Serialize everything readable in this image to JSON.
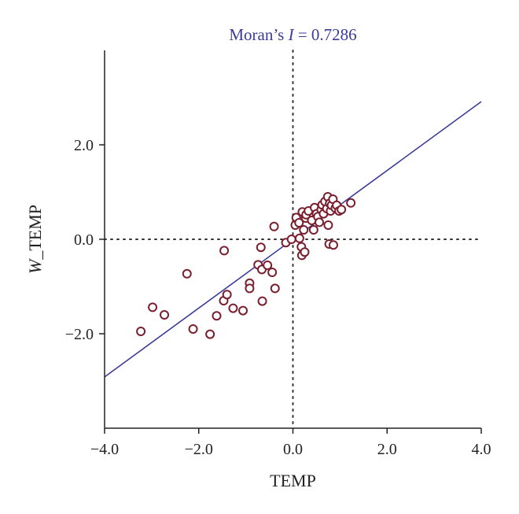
{
  "chart_data": {
    "type": "scatter",
    "title_prefix": "Moran’s ",
    "title_italic": "I",
    "title_suffix": " = 0.7286",
    "xlabel": "TEMP",
    "ylabel_italic": "W",
    "ylabel_rest": "_TEMP",
    "xlim": [
      -4.0,
      4.0
    ],
    "ylim": [
      -4.0,
      4.0
    ],
    "xticks": [
      -4.0,
      -2.0,
      0.0,
      2.0,
      4.0
    ],
    "xtick_labels": [
      "−4.0",
      "−2.0",
      "0.0",
      "2.0",
      "4.0"
    ],
    "yticks": [
      -2.0,
      0.0,
      2.0
    ],
    "ytick_labels": [
      "−2.0",
      "0.0",
      "2.0"
    ],
    "regression": {
      "slope": 0.7286,
      "intercept": 0.0
    },
    "reference_lines": {
      "x": 0.0,
      "y": 0.0,
      "style": "dotted"
    },
    "colors": {
      "title": "#3b3b9a",
      "line": "#3b3b9a",
      "points": "#7a1f2e",
      "axis": "#222222"
    },
    "points": [
      [
        -3.23,
        -1.95
      ],
      [
        -2.98,
        -1.44
      ],
      [
        -2.73,
        -1.6
      ],
      [
        -2.25,
        -0.73
      ],
      [
        -2.12,
        -1.9
      ],
      [
        -1.76,
        -2.01
      ],
      [
        -1.62,
        -1.62
      ],
      [
        -1.46,
        -0.24
      ],
      [
        -1.47,
        -1.3
      ],
      [
        -1.4,
        -1.17
      ],
      [
        -1.27,
        -1.46
      ],
      [
        -1.06,
        -1.51
      ],
      [
        -0.92,
        -0.93
      ],
      [
        -0.92,
        -1.04
      ],
      [
        -0.74,
        -0.54
      ],
      [
        -0.68,
        -0.17
      ],
      [
        -0.66,
        -0.64
      ],
      [
        -0.65,
        -1.31
      ],
      [
        -0.54,
        -0.55
      ],
      [
        -0.44,
        -0.7
      ],
      [
        -0.4,
        0.27
      ],
      [
        -0.38,
        -1.04
      ],
      [
        -0.15,
        -0.07
      ],
      [
        -0.03,
        0.0
      ],
      [
        0.05,
        0.3
      ],
      [
        0.07,
        0.46
      ],
      [
        0.13,
        0.35
      ],
      [
        0.14,
        0.02
      ],
      [
        0.18,
        -0.16
      ],
      [
        0.19,
        -0.34
      ],
      [
        0.2,
        0.58
      ],
      [
        0.23,
        0.2
      ],
      [
        0.25,
        -0.27
      ],
      [
        0.27,
        0.45
      ],
      [
        0.28,
        0.52
      ],
      [
        0.33,
        0.6
      ],
      [
        0.4,
        0.4
      ],
      [
        0.44,
        0.2
      ],
      [
        0.46,
        0.67
      ],
      [
        0.5,
        0.54
      ],
      [
        0.53,
        0.48
      ],
      [
        0.56,
        0.36
      ],
      [
        0.6,
        0.63
      ],
      [
        0.62,
        0.73
      ],
      [
        0.65,
        0.54
      ],
      [
        0.68,
        0.8
      ],
      [
        0.72,
        0.65
      ],
      [
        0.74,
        0.9
      ],
      [
        0.75,
        0.3
      ],
      [
        0.77,
        -0.1
      ],
      [
        0.78,
        0.76
      ],
      [
        0.8,
        0.6
      ],
      [
        0.82,
        0.72
      ],
      [
        0.85,
        0.85
      ],
      [
        0.86,
        -0.12
      ],
      [
        0.9,
        0.66
      ],
      [
        0.93,
        0.72
      ],
      [
        0.98,
        0.6
      ],
      [
        1.03,
        0.63
      ],
      [
        1.23,
        0.77
      ]
    ]
  }
}
